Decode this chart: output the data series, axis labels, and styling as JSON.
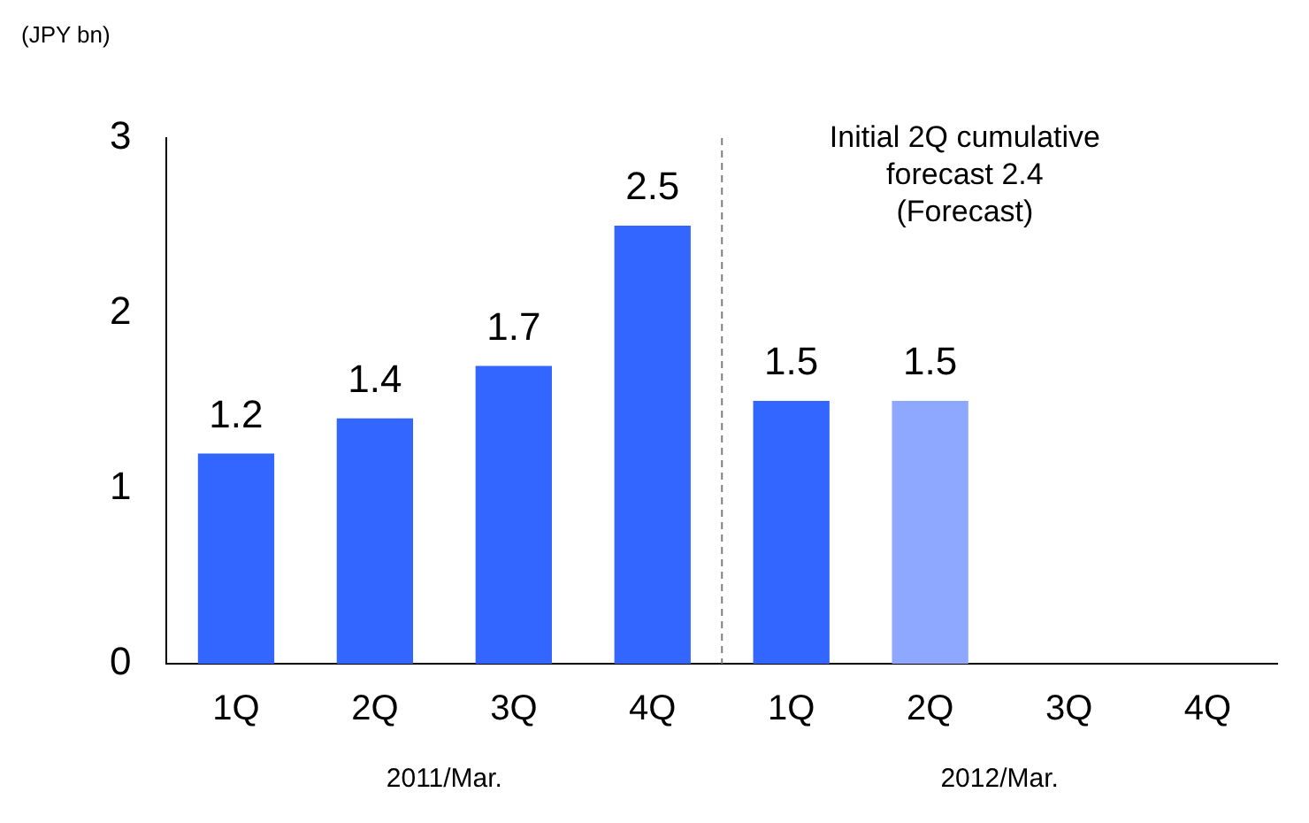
{
  "chart_data": {
    "type": "bar",
    "ylabel": "(JPY bn)",
    "categories": [
      "1Q",
      "2Q",
      "3Q",
      "4Q",
      "1Q",
      "2Q",
      "3Q",
      "4Q"
    ],
    "values": [
      1.2,
      1.4,
      1.7,
      2.5,
      1.5,
      1.5,
      null,
      null
    ],
    "colors": [
      "#3366ff",
      "#3366ff",
      "#3366ff",
      "#3366ff",
      "#3366ff",
      "#8fa8ff",
      "#3366ff",
      "#3366ff"
    ],
    "ylim": [
      0,
      3
    ],
    "yticks": [
      0,
      1,
      2,
      3
    ],
    "grid": false,
    "legend": false,
    "data_labels": true,
    "annotations": [
      "2011/Mar.",
      "2012/Mar.",
      "Initial 2Q cumulative\nforecast 2.4\n(Forecast)"
    ]
  }
}
